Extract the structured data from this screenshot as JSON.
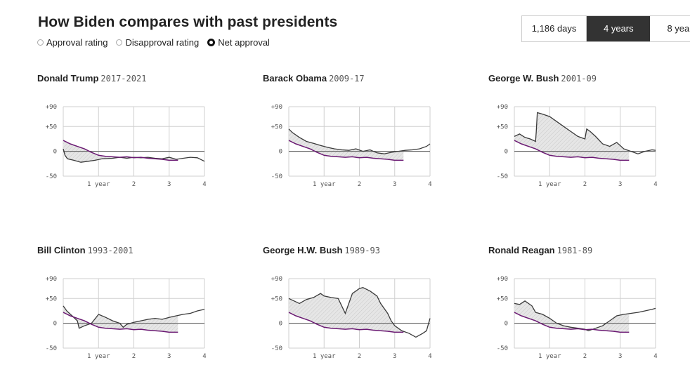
{
  "header": {
    "title": "How Biden compares with past presidents"
  },
  "controls": {
    "metric_options": [
      {
        "label": "Approval rating",
        "selected": false
      },
      {
        "label": "Disapproval rating",
        "selected": false
      },
      {
        "label": "Net approval",
        "selected": true
      }
    ],
    "range_options": [
      {
        "label": "1,186 days",
        "selected": false
      },
      {
        "label": "4 years",
        "selected": true
      },
      {
        "label": "8 yea",
        "selected": false
      }
    ]
  },
  "colors": {
    "president_line": "#3a3a3a",
    "biden_line": "#6b1a73",
    "fill": "#e6e6e6",
    "grid": "#cfcfcf",
    "zero_line": "#555555",
    "accent_selected": "#333333"
  },
  "chart_data": [
    {
      "type": "line",
      "name": "Donald Trump",
      "years": "2017-2021",
      "xlim": [
        0,
        4
      ],
      "ylim": [
        -50,
        90
      ],
      "x_ticks": [
        {
          "value": 1,
          "label": "1 year"
        },
        {
          "value": 2,
          "label": "2"
        },
        {
          "value": 3,
          "label": "3"
        },
        {
          "value": 4,
          "label": "4"
        }
      ],
      "y_ticks": [
        {
          "value": 90,
          "label": "+90"
        },
        {
          "value": 50,
          "label": "+50"
        },
        {
          "value": 0,
          "label": "0"
        },
        {
          "value": -50,
          "label": "-50"
        }
      ],
      "series": [
        {
          "x": [
            0,
            0.05,
            0.12,
            0.3,
            0.5,
            0.7,
            0.9,
            1.1,
            1.4,
            1.6,
            1.8,
            2.0,
            2.2,
            2.4,
            2.6,
            2.8,
            3.0,
            3.2,
            3.4,
            3.6,
            3.8,
            4.0
          ],
          "y": [
            5,
            -8,
            -15,
            -18,
            -22,
            -20,
            -18,
            -15,
            -14,
            -12,
            -14,
            -12,
            -13,
            -12,
            -14,
            -15,
            -12,
            -16,
            -14,
            -12,
            -13,
            -20
          ]
        },
        {
          "x": [
            0,
            0.2,
            0.4,
            0.6,
            0.8,
            1.0,
            1.2,
            1.4,
            1.6,
            1.8,
            2.0,
            2.2,
            2.4,
            2.6,
            2.8,
            3.0,
            3.25
          ],
          "y": [
            22,
            15,
            10,
            5,
            -2,
            -8,
            -10,
            -11,
            -12,
            -11,
            -13,
            -12,
            -14,
            -15,
            -16,
            -18,
            -18
          ]
        }
      ]
    },
    {
      "type": "line",
      "name": "Barack Obama",
      "years": "2009-17",
      "xlim": [
        0,
        4
      ],
      "ylim": [
        -50,
        90
      ],
      "x_ticks": [
        {
          "value": 1,
          "label": "1 year"
        },
        {
          "value": 2,
          "label": "2"
        },
        {
          "value": 3,
          "label": "3"
        },
        {
          "value": 4,
          "label": "4"
        }
      ],
      "y_ticks": [
        {
          "value": 90,
          "label": "+90"
        },
        {
          "value": 50,
          "label": "+50"
        },
        {
          "value": 0,
          "label": "0"
        },
        {
          "value": -50,
          "label": "-50"
        }
      ],
      "series": [
        {
          "x": [
            0,
            0.1,
            0.3,
            0.5,
            0.7,
            0.9,
            1.1,
            1.3,
            1.5,
            1.7,
            1.9,
            2.1,
            2.3,
            2.5,
            2.7,
            2.9,
            3.1,
            3.3,
            3.5,
            3.7,
            3.9,
            4.0
          ],
          "y": [
            45,
            38,
            28,
            20,
            16,
            12,
            8,
            5,
            3,
            2,
            5,
            0,
            3,
            -3,
            -5,
            -2,
            0,
            2,
            3,
            5,
            10,
            15
          ]
        },
        {
          "x": [
            0,
            0.2,
            0.4,
            0.6,
            0.8,
            1.0,
            1.2,
            1.4,
            1.6,
            1.8,
            2.0,
            2.2,
            2.4,
            2.6,
            2.8,
            3.0,
            3.25
          ],
          "y": [
            22,
            15,
            10,
            5,
            -2,
            -8,
            -10,
            -11,
            -12,
            -11,
            -13,
            -12,
            -14,
            -15,
            -16,
            -18,
            -18
          ]
        }
      ]
    },
    {
      "type": "line",
      "name": "George W. Bush",
      "years": "2001-09",
      "xlim": [
        0,
        4
      ],
      "ylim": [
        -50,
        90
      ],
      "x_ticks": [
        {
          "value": 1,
          "label": "1 year"
        },
        {
          "value": 2,
          "label": "2"
        },
        {
          "value": 3,
          "label": "3"
        },
        {
          "value": 4,
          "label": "4"
        }
      ],
      "y_ticks": [
        {
          "value": 90,
          "label": "+90"
        },
        {
          "value": 50,
          "label": "+50"
        },
        {
          "value": 0,
          "label": "0"
        },
        {
          "value": -50,
          "label": "-50"
        }
      ],
      "series": [
        {
          "x": [
            0,
            0.15,
            0.3,
            0.45,
            0.6,
            0.62,
            0.65,
            0.8,
            1.0,
            1.2,
            1.4,
            1.6,
            1.8,
            2.0,
            2.05,
            2.15,
            2.3,
            2.5,
            2.7,
            2.9,
            3.1,
            3.3,
            3.5,
            3.7,
            3.9,
            4.0
          ],
          "y": [
            30,
            35,
            28,
            25,
            20,
            40,
            78,
            75,
            70,
            60,
            50,
            40,
            30,
            25,
            45,
            40,
            30,
            15,
            10,
            18,
            5,
            0,
            -5,
            0,
            3,
            2
          ]
        },
        {
          "x": [
            0,
            0.2,
            0.4,
            0.6,
            0.8,
            1.0,
            1.2,
            1.4,
            1.6,
            1.8,
            2.0,
            2.2,
            2.4,
            2.6,
            2.8,
            3.0,
            3.25
          ],
          "y": [
            22,
            15,
            10,
            5,
            -2,
            -8,
            -10,
            -11,
            -12,
            -11,
            -13,
            -12,
            -14,
            -15,
            -16,
            -18,
            -18
          ]
        }
      ]
    },
    {
      "type": "line",
      "name": "Bill Clinton",
      "years": "1993-2001",
      "xlim": [
        0,
        4
      ],
      "ylim": [
        -50,
        90
      ],
      "x_ticks": [
        {
          "value": 1,
          "label": "1 year"
        },
        {
          "value": 2,
          "label": "2"
        },
        {
          "value": 3,
          "label": "3"
        },
        {
          "value": 4,
          "label": "4"
        }
      ],
      "y_ticks": [
        {
          "value": 90,
          "label": "+90"
        },
        {
          "value": 50,
          "label": "+50"
        },
        {
          "value": 0,
          "label": "0"
        },
        {
          "value": -50,
          "label": "-50"
        }
      ],
      "series": [
        {
          "x": [
            0,
            0.1,
            0.25,
            0.4,
            0.45,
            0.6,
            0.8,
            1.0,
            1.2,
            1.4,
            1.6,
            1.7,
            1.8,
            2.0,
            2.2,
            2.4,
            2.6,
            2.8,
            3.0,
            3.2,
            3.4,
            3.6,
            3.8,
            4.0
          ],
          "y": [
            35,
            25,
            15,
            5,
            -10,
            -5,
            0,
            18,
            12,
            5,
            0,
            -8,
            -2,
            2,
            5,
            8,
            10,
            8,
            12,
            15,
            18,
            20,
            25,
            28
          ]
        },
        {
          "x": [
            0,
            0.2,
            0.4,
            0.6,
            0.8,
            1.0,
            1.2,
            1.4,
            1.6,
            1.8,
            2.0,
            2.2,
            2.4,
            2.6,
            2.8,
            3.0,
            3.25
          ],
          "y": [
            22,
            15,
            10,
            5,
            -2,
            -8,
            -10,
            -11,
            -12,
            -11,
            -13,
            -12,
            -14,
            -15,
            -16,
            -18,
            -18
          ]
        }
      ]
    },
    {
      "type": "line",
      "name": "George H.W. Bush",
      "years": "1989-93",
      "xlim": [
        0,
        4
      ],
      "ylim": [
        -50,
        90
      ],
      "x_ticks": [
        {
          "value": 1,
          "label": "1 year"
        },
        {
          "value": 2,
          "label": "2"
        },
        {
          "value": 3,
          "label": "3"
        },
        {
          "value": 4,
          "label": "4"
        }
      ],
      "y_ticks": [
        {
          "value": 90,
          "label": "+90"
        },
        {
          "value": 50,
          "label": "+50"
        },
        {
          "value": 0,
          "label": "0"
        },
        {
          "value": -50,
          "label": "-50"
        }
      ],
      "series": [
        {
          "x": [
            0,
            0.15,
            0.3,
            0.5,
            0.7,
            0.9,
            1.0,
            1.2,
            1.4,
            1.6,
            1.8,
            2.0,
            2.1,
            2.3,
            2.5,
            2.6,
            2.8,
            2.9,
            3.0,
            3.2,
            3.4,
            3.6,
            3.8,
            3.9,
            4.0
          ],
          "y": [
            50,
            45,
            40,
            48,
            52,
            60,
            55,
            52,
            50,
            20,
            60,
            70,
            72,
            65,
            55,
            40,
            20,
            5,
            -5,
            -15,
            -20,
            -28,
            -20,
            -15,
            10
          ]
        },
        {
          "x": [
            0,
            0.2,
            0.4,
            0.6,
            0.8,
            1.0,
            1.2,
            1.4,
            1.6,
            1.8,
            2.0,
            2.2,
            2.4,
            2.6,
            2.8,
            3.0,
            3.25
          ],
          "y": [
            22,
            15,
            10,
            5,
            -2,
            -8,
            -10,
            -11,
            -12,
            -11,
            -13,
            -12,
            -14,
            -15,
            -16,
            -18,
            -18
          ]
        }
      ]
    },
    {
      "type": "line",
      "name": "Ronald Reagan",
      "years": "1981-89",
      "xlim": [
        0,
        4
      ],
      "ylim": [
        -50,
        90
      ],
      "x_ticks": [
        {
          "value": 1,
          "label": "1 year"
        },
        {
          "value": 2,
          "label": "2"
        },
        {
          "value": 3,
          "label": "3"
        },
        {
          "value": 4,
          "label": "4"
        }
      ],
      "y_ticks": [
        {
          "value": 90,
          "label": "+90"
        },
        {
          "value": 50,
          "label": "+50"
        },
        {
          "value": 0,
          "label": "0"
        },
        {
          "value": -50,
          "label": "-50"
        }
      ],
      "series": [
        {
          "x": [
            0,
            0.15,
            0.3,
            0.5,
            0.6,
            0.8,
            1.0,
            1.2,
            1.4,
            1.6,
            1.8,
            2.0,
            2.1,
            2.3,
            2.5,
            2.7,
            2.9,
            3.1,
            3.3,
            3.5,
            3.7,
            3.9,
            4.0
          ],
          "y": [
            40,
            38,
            45,
            35,
            22,
            18,
            10,
            0,
            -5,
            -8,
            -10,
            -12,
            -15,
            -10,
            -5,
            5,
            15,
            18,
            20,
            22,
            25,
            28,
            30
          ]
        },
        {
          "x": [
            0,
            0.2,
            0.4,
            0.6,
            0.8,
            1.0,
            1.2,
            1.4,
            1.6,
            1.8,
            2.0,
            2.2,
            2.4,
            2.6,
            2.8,
            3.0,
            3.25
          ],
          "y": [
            22,
            15,
            10,
            5,
            -2,
            -8,
            -10,
            -11,
            -12,
            -11,
            -13,
            -12,
            -14,
            -15,
            -16,
            -18,
            -18
          ]
        }
      ]
    }
  ]
}
